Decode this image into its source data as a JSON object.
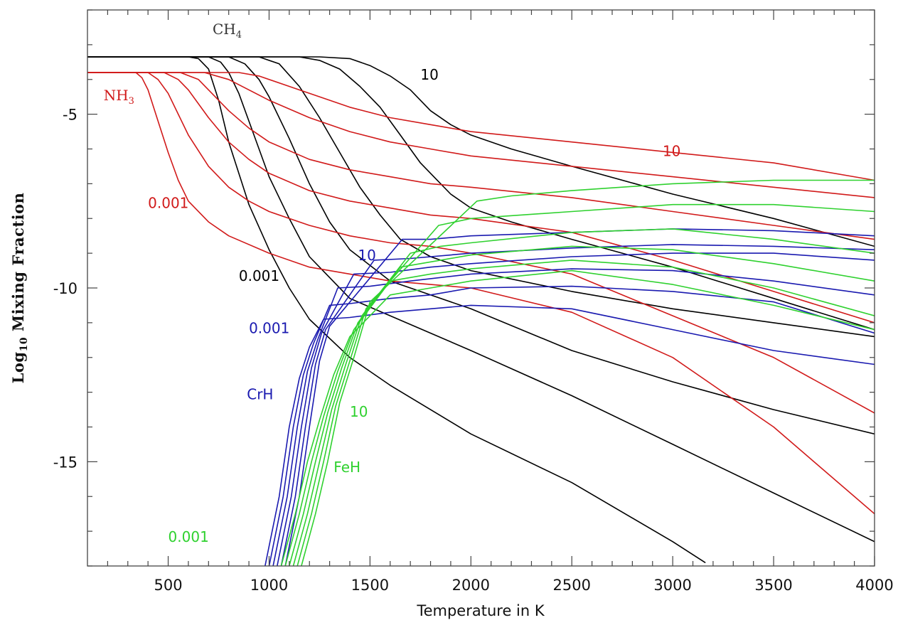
{
  "chart_data": {
    "type": "line",
    "xlabel": "Temperature in K",
    "ylabel_prefix": "Log",
    "ylabel_subscript": "10",
    "ylabel_suffix": " Mixing  Fraction",
    "xlim": [
      100,
      4000
    ],
    "ylim": [
      -18,
      -2
    ],
    "x_ticks": [
      500,
      1000,
      1500,
      2000,
      2500,
      3000,
      3500,
      4000
    ],
    "y_ticks": [
      -5,
      -10,
      -15
    ],
    "colors": {
      "CH4": "#000000",
      "NH3": "#d11a1a",
      "CrH": "#1a1ab0",
      "FeH": "#2fd12f"
    },
    "annotations": [
      {
        "id": "ch4",
        "text": "CH",
        "sub": "4",
        "x": 720,
        "y": -2.7,
        "color": "#333333",
        "serif": true
      },
      {
        "id": "nh3",
        "text": "NH",
        "sub": "3",
        "x": 180,
        "y": -4.6,
        "color": "#d11a1a",
        "serif": true
      },
      {
        "id": "ch4-10",
        "text": "10",
        "x": 1750,
        "y": -4.0,
        "color": "#000000"
      },
      {
        "id": "nh3-10",
        "text": "10",
        "x": 2950,
        "y": -6.2,
        "color": "#d11a1a"
      },
      {
        "id": "nh3-0001",
        "text": "0.001",
        "x": 400,
        "y": -7.7,
        "color": "#d11a1a"
      },
      {
        "id": "ch4-0001",
        "text": "0.001",
        "x": 850,
        "y": -9.8,
        "color": "#000000"
      },
      {
        "id": "crh-10",
        "text": "10",
        "x": 1440,
        "y": -9.2,
        "color": "#1a1ab0"
      },
      {
        "id": "crh-0001",
        "text": "0.001",
        "x": 900,
        "y": -11.3,
        "color": "#1a1ab0"
      },
      {
        "id": "crh",
        "text": "CrH",
        "x": 890,
        "y": -13.2,
        "color": "#1a1ab0"
      },
      {
        "id": "feh-10",
        "text": "10",
        "x": 1400,
        "y": -13.7,
        "color": "#2fd12f"
      },
      {
        "id": "feh",
        "text": "FeH",
        "x": 1320,
        "y": -15.3,
        "color": "#2fd12f"
      },
      {
        "id": "feh-0001",
        "text": "0.001",
        "x": 500,
        "y": -17.3,
        "color": "#2fd12f"
      }
    ],
    "series": [
      {
        "group": "CH4",
        "color": "#000000",
        "x": [
          100,
          600,
          650,
          700,
          750,
          800,
          900,
          1000,
          1100,
          1200,
          1400,
          1600,
          1800,
          2000,
          2500,
          3000,
          3160
        ],
        "y": [
          -3.35,
          -3.35,
          -3.4,
          -3.7,
          -4.6,
          -5.8,
          -7.6,
          -8.9,
          -10.0,
          -10.9,
          -12.0,
          -12.8,
          -13.5,
          -14.2,
          -15.6,
          -17.3,
          -17.9
        ]
      },
      {
        "group": "CH4",
        "color": "#000000",
        "x": [
          100,
          700,
          760,
          800,
          850,
          900,
          1000,
          1100,
          1200,
          1400,
          1600,
          1800,
          2000,
          2500,
          3000,
          3500,
          4000
        ],
        "y": [
          -3.35,
          -3.35,
          -3.5,
          -3.8,
          -4.4,
          -5.2,
          -6.8,
          -8.0,
          -9.1,
          -10.3,
          -10.8,
          -11.3,
          -11.8,
          -13.1,
          -14.5,
          -15.9,
          -17.3
        ]
      },
      {
        "group": "CH4",
        "color": "#000000",
        "x": [
          100,
          800,
          880,
          950,
          1000,
          1100,
          1200,
          1300,
          1400,
          1600,
          1800,
          2000,
          2500,
          3000,
          3500,
          4000
        ],
        "y": [
          -3.35,
          -3.35,
          -3.55,
          -4.0,
          -4.5,
          -5.7,
          -7.0,
          -8.1,
          -8.9,
          -9.8,
          -10.2,
          -10.6,
          -11.8,
          -12.7,
          -13.5,
          -14.2
        ]
      },
      {
        "group": "CH4",
        "color": "#000000",
        "x": [
          100,
          950,
          1050,
          1150,
          1250,
          1350,
          1450,
          1550,
          1650,
          1800,
          2000,
          2500,
          3000,
          3500,
          4000
        ],
        "y": [
          -3.35,
          -3.35,
          -3.55,
          -4.2,
          -5.1,
          -6.1,
          -7.1,
          -7.9,
          -8.6,
          -9.1,
          -9.5,
          -10.1,
          -10.6,
          -11.0,
          -11.4
        ]
      },
      {
        "group": "CH4",
        "color": "#000000",
        "x": [
          100,
          1150,
          1250,
          1350,
          1450,
          1550,
          1650,
          1750,
          1900,
          2000,
          2200,
          2500,
          3000,
          3500,
          4000
        ],
        "y": [
          -3.35,
          -3.35,
          -3.45,
          -3.7,
          -4.2,
          -4.8,
          -5.6,
          -6.4,
          -7.3,
          -7.7,
          -8.1,
          -8.6,
          -9.4,
          -10.3,
          -11.2
        ]
      },
      {
        "group": "CH4",
        "color": "#000000",
        "x": [
          100,
          1250,
          1400,
          1500,
          1600,
          1700,
          1800,
          1900,
          2000,
          2200,
          2500,
          3000,
          3500,
          4000
        ],
        "y": [
          -3.35,
          -3.35,
          -3.4,
          -3.6,
          -3.9,
          -4.3,
          -4.9,
          -5.3,
          -5.6,
          -6.0,
          -6.5,
          -7.3,
          -8.0,
          -8.8
        ]
      },
      {
        "group": "NH3",
        "color": "#d11a1a",
        "x": [
          100,
          340,
          370,
          400,
          450,
          500,
          550,
          600,
          700,
          800,
          1000,
          1200,
          1400,
          1600,
          1800,
          2000,
          2500,
          3000,
          3500,
          4000
        ],
        "y": [
          -3.8,
          -3.8,
          -3.95,
          -4.3,
          -5.2,
          -6.1,
          -6.9,
          -7.5,
          -8.1,
          -8.5,
          -9.0,
          -9.4,
          -9.6,
          -9.8,
          -9.9,
          -10.0,
          -10.7,
          -12.0,
          -14.0,
          -16.5
        ]
      },
      {
        "group": "NH3",
        "color": "#d11a1a",
        "x": [
          100,
          400,
          450,
          500,
          550,
          600,
          700,
          800,
          900,
          1000,
          1200,
          1400,
          1600,
          1800,
          2000,
          2500,
          3000,
          3500,
          4000
        ],
        "y": [
          -3.8,
          -3.8,
          -4.0,
          -4.4,
          -5.0,
          -5.6,
          -6.5,
          -7.1,
          -7.5,
          -7.8,
          -8.2,
          -8.5,
          -8.7,
          -8.8,
          -9.0,
          -9.6,
          -10.8,
          -12.0,
          -13.6
        ]
      },
      {
        "group": "NH3",
        "color": "#d11a1a",
        "x": [
          100,
          480,
          550,
          600,
          700,
          800,
          900,
          1000,
          1200,
          1400,
          1600,
          1800,
          2000,
          2500,
          3000,
          3500,
          4000
        ],
        "y": [
          -3.8,
          -3.8,
          -4.0,
          -4.3,
          -5.1,
          -5.8,
          -6.3,
          -6.7,
          -7.2,
          -7.5,
          -7.7,
          -7.9,
          -8.0,
          -8.4,
          -9.2,
          -10.1,
          -11.0
        ]
      },
      {
        "group": "NH3",
        "color": "#d11a1a",
        "x": [
          100,
          560,
          650,
          700,
          800,
          900,
          1000,
          1200,
          1400,
          1600,
          1800,
          2000,
          2500,
          3000,
          3500,
          4000
        ],
        "y": [
          -3.8,
          -3.8,
          -4.0,
          -4.3,
          -4.9,
          -5.4,
          -5.8,
          -6.3,
          -6.6,
          -6.8,
          -7.0,
          -7.1,
          -7.4,
          -7.8,
          -8.2,
          -8.6
        ]
      },
      {
        "group": "NH3",
        "color": "#d11a1a",
        "x": [
          100,
          680,
          800,
          900,
          1000,
          1200,
          1400,
          1600,
          1800,
          2000,
          2500,
          3000,
          3500,
          4000
        ],
        "y": [
          -3.8,
          -3.8,
          -4.0,
          -4.3,
          -4.6,
          -5.1,
          -5.5,
          -5.8,
          -6.0,
          -6.2,
          -6.5,
          -6.8,
          -7.1,
          -7.4
        ]
      },
      {
        "group": "NH3",
        "color": "#d11a1a",
        "x": [
          100,
          850,
          950,
          1100,
          1200,
          1400,
          1600,
          1800,
          2000,
          2500,
          3000,
          3500,
          4000
        ],
        "y": [
          -3.8,
          -3.8,
          -3.9,
          -4.2,
          -4.4,
          -4.8,
          -5.1,
          -5.3,
          -5.5,
          -5.8,
          -6.1,
          -6.4,
          -6.9
        ]
      },
      {
        "group": "CrH",
        "color": "#1a1ab0",
        "x": [
          980,
          1050,
          1100,
          1150,
          1200,
          1270,
          1400,
          1600,
          1800,
          2000,
          2500,
          3000,
          3500,
          4000
        ],
        "y": [
          -18,
          -16.0,
          -14.0,
          -12.6,
          -11.7,
          -10.9,
          -10.85,
          -10.7,
          -10.6,
          -10.5,
          -10.6,
          -11.2,
          -11.8,
          -12.2
        ]
      },
      {
        "group": "CrH",
        "color": "#1a1ab0",
        "x": [
          1000,
          1070,
          1120,
          1170,
          1220,
          1300,
          1400,
          1600,
          1800,
          2000,
          2500,
          3000,
          3500,
          4000
        ],
        "y": [
          -18,
          -16.0,
          -14.0,
          -12.5,
          -11.6,
          -10.5,
          -10.45,
          -10.3,
          -10.2,
          -10.0,
          -9.95,
          -10.1,
          -10.4,
          -11.3
        ]
      },
      {
        "group": "CrH",
        "color": "#1a1ab0",
        "x": [
          1020,
          1090,
          1140,
          1190,
          1240,
          1340,
          1500,
          1700,
          2000,
          2500,
          3000,
          3500,
          4000
        ],
        "y": [
          -18,
          -16.0,
          -14.0,
          -12.4,
          -11.5,
          -10.0,
          -9.95,
          -9.8,
          -9.6,
          -9.45,
          -9.5,
          -9.8,
          -10.2
        ]
      },
      {
        "group": "CrH",
        "color": "#1a1ab0",
        "x": [
          1040,
          1110,
          1160,
          1210,
          1260,
          1420,
          1600,
          1800,
          2000,
          2500,
          3000,
          3500,
          4000
        ],
        "y": [
          -18,
          -16.0,
          -14.0,
          -12.3,
          -11.3,
          -9.6,
          -9.55,
          -9.4,
          -9.3,
          -9.1,
          -9.0,
          -9.0,
          -9.2
        ]
      },
      {
        "group": "CrH",
        "color": "#1a1ab0",
        "x": [
          1060,
          1130,
          1180,
          1230,
          1280,
          1520,
          1700,
          2000,
          2500,
          3000,
          3500,
          4000
        ],
        "y": [
          -18,
          -16.0,
          -14.0,
          -12.2,
          -11.2,
          -9.2,
          -9.15,
          -9.0,
          -8.85,
          -8.75,
          -8.8,
          -8.9
        ]
      },
      {
        "group": "CrH",
        "color": "#1a1ab0",
        "x": [
          1080,
          1150,
          1200,
          1250,
          1300,
          1660,
          1800,
          2000,
          2500,
          3000,
          3500,
          4000
        ],
        "y": [
          -18,
          -16.0,
          -14.0,
          -12.1,
          -11.1,
          -8.6,
          -8.6,
          -8.5,
          -8.4,
          -8.3,
          -8.35,
          -8.5
        ]
      },
      {
        "group": "FeH",
        "color": "#2fd12f",
        "x": [
          1060,
          1130,
          1190,
          1250,
          1320,
          1400,
          1600,
          1800,
          2000,
          2500,
          3000,
          3500,
          4000
        ],
        "y": [
          -18,
          -16.5,
          -15.0,
          -13.8,
          -12.5,
          -11.4,
          -10.2,
          -10.0,
          -9.8,
          -9.5,
          -9.9,
          -10.5,
          -11.2
        ]
      },
      {
        "group": "FeH",
        "color": "#2fd12f",
        "x": [
          1080,
          1150,
          1210,
          1270,
          1340,
          1420,
          1600,
          1800,
          2000,
          2500,
          3000,
          3500,
          4000
        ],
        "y": [
          -18,
          -16.5,
          -15.0,
          -13.7,
          -12.4,
          -11.2,
          -9.8,
          -9.6,
          -9.45,
          -9.2,
          -9.4,
          -10.0,
          -10.8
        ]
      },
      {
        "group": "FeH",
        "color": "#2fd12f",
        "x": [
          1100,
          1170,
          1230,
          1290,
          1360,
          1440,
          1650,
          1850,
          2000,
          2500,
          3000,
          3500,
          4000
        ],
        "y": [
          -18,
          -16.5,
          -15.0,
          -13.6,
          -12.3,
          -11.0,
          -9.4,
          -9.2,
          -9.05,
          -8.8,
          -8.9,
          -9.3,
          -9.8
        ]
      },
      {
        "group": "FeH",
        "color": "#2fd12f",
        "x": [
          1120,
          1190,
          1250,
          1310,
          1380,
          1460,
          1700,
          1850,
          2000,
          2500,
          3000,
          3500,
          4000
        ],
        "y": [
          -18,
          -16.5,
          -15.0,
          -13.5,
          -12.2,
          -10.8,
          -9.0,
          -8.8,
          -8.7,
          -8.4,
          -8.3,
          -8.6,
          -9.0
        ]
      },
      {
        "group": "FeH",
        "color": "#2fd12f",
        "x": [
          1140,
          1210,
          1270,
          1330,
          1400,
          1480,
          1840,
          2000,
          2500,
          3000,
          3500,
          4000
        ],
        "y": [
          -18,
          -16.5,
          -15.0,
          -13.4,
          -12.1,
          -10.6,
          -8.2,
          -8.0,
          -7.8,
          -7.6,
          -7.6,
          -7.8
        ]
      },
      {
        "group": "FeH",
        "color": "#2fd12f",
        "x": [
          1160,
          1230,
          1290,
          1350,
          1420,
          1500,
          2030,
          2200,
          2500,
          3000,
          3500,
          4000
        ],
        "y": [
          -18,
          -16.5,
          -15.0,
          -13.3,
          -12.0,
          -10.4,
          -7.5,
          -7.35,
          -7.2,
          -7.0,
          -6.9,
          -6.9
        ]
      }
    ]
  }
}
